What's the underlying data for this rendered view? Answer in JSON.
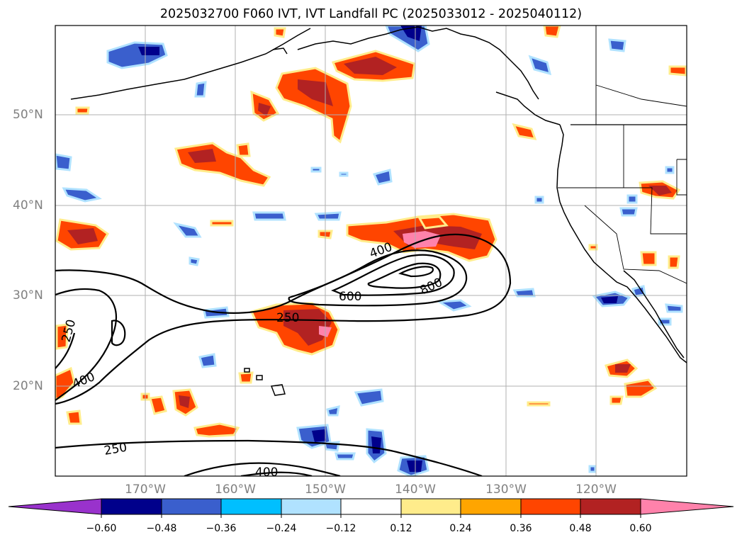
{
  "title": "2025032700 F060 IVT, IVT Landfall PC (2025033012 - 2025040112)",
  "latitude_labels": [
    "50°N",
    "40°N",
    "30°N",
    "20°N"
  ],
  "longitude_labels": [
    "170°W",
    "160°W",
    "150°W",
    "140°W",
    "130°W",
    "120°W"
  ],
  "ivt_contour_labels": [
    "250",
    "400",
    "600",
    "800",
    "250",
    "400",
    "250",
    "400"
  ],
  "colorbar": {
    "levels": [
      "−0.60",
      "−0.48",
      "−0.36",
      "−0.24",
      "−0.12",
      "0.12",
      "0.24",
      "0.36",
      "0.48",
      "0.60"
    ],
    "colors": [
      "#9932CC",
      "#00008B",
      "#3A5FCD",
      "#00BFFF",
      "#B0E2FF",
      "#FFFFFF",
      "#FFEC8B",
      "#FFA500",
      "#FF4500",
      "#B22222",
      "#FF82AB"
    ]
  }
}
